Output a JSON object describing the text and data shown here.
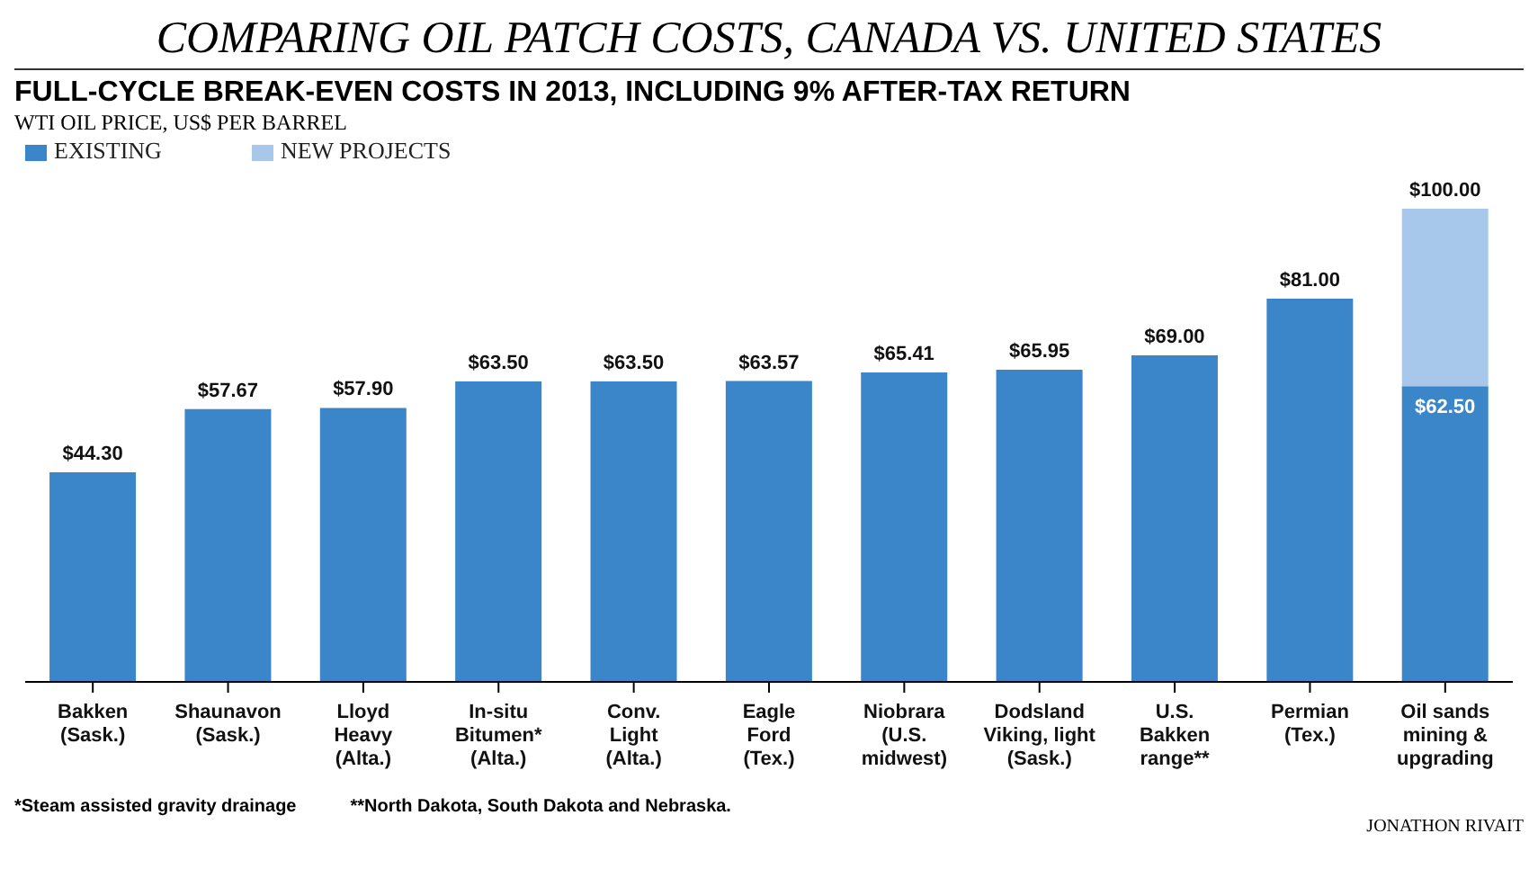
{
  "chart_data": {
    "type": "bar",
    "title": "COMPARING OIL PATCH COSTS, CANADA VS. UNITED STATES",
    "subtitle": "FULL-CYCLE BREAK-EVEN COSTS IN 2013, INCLUDING 9% AFTER-TAX RETURN",
    "ylabel": "WTI OIL PRICE, US$ PER BARREL",
    "categories": [
      "Bakken\n(Sask.)",
      "Shaunavon\n(Sask.)",
      "Lloyd\nHeavy\n(Alta.)",
      "In-situ\nBitumen*\n(Alta.)",
      "Conv.\nLight\n(Alta.)",
      "Eagle\nFord\n(Tex.)",
      "Niobrara\n(U.S.\nmidwest)",
      "Dodsland\nViking, light\n(Sask.)",
      "U.S.\nBakken\nrange**",
      "Permian\n(Tex.)",
      "Oil sands\nmining &\nupgrading"
    ],
    "stacked": true,
    "series": [
      {
        "name": "EXISTING",
        "color": "#3b86c9",
        "values": [
          44.3,
          57.67,
          57.9,
          63.5,
          63.5,
          63.57,
          65.41,
          65.95,
          69.0,
          81.0,
          62.5
        ],
        "value_labels": [
          "$44.30",
          "$57.67",
          "$57.90",
          "$63.50",
          "$63.50",
          "$63.57",
          "$65.41",
          "$65.95",
          "$69.00",
          "$81.00",
          "$62.50"
        ]
      },
      {
        "name": "NEW PROJECTS",
        "color": "#a8c8eb",
        "values": [
          null,
          null,
          null,
          null,
          null,
          null,
          null,
          null,
          null,
          null,
          37.5
        ]
      }
    ],
    "totals": [
      null,
      null,
      null,
      null,
      null,
      null,
      null,
      null,
      null,
      null,
      "$100.00"
    ],
    "legend": "top left",
    "annotations": [
      "*Steam assisted gravity drainage",
      "**North Dakota, South Dakota and Nebraska.",
      "JONATHON RIVAIT"
    ]
  }
}
